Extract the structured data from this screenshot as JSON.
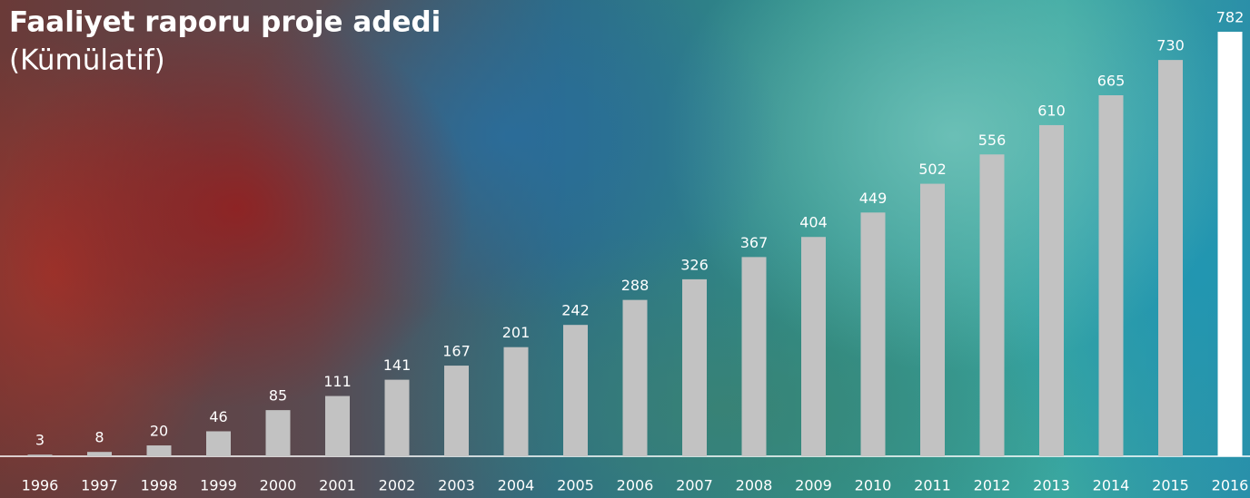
{
  "chart_data": {
    "type": "bar",
    "title": "Faaliyet raporu proje adedi",
    "subtitle": "(Kümülatif)",
    "categories": [
      "1996",
      "1997",
      "1998",
      "1999",
      "2000",
      "2001",
      "2002",
      "2003",
      "2004",
      "2005",
      "2006",
      "2007",
      "2008",
      "2009",
      "2010",
      "2011",
      "2012",
      "2013",
      "2014",
      "2015",
      "2016"
    ],
    "values": [
      3,
      8,
      20,
      46,
      85,
      111,
      141,
      167,
      201,
      242,
      288,
      326,
      367,
      404,
      449,
      502,
      556,
      610,
      665,
      730,
      782
    ],
    "colors": [
      "#c2c2c2",
      "#c2c2c2",
      "#c2c2c2",
      "#c2c2c2",
      "#c2c2c2",
      "#c2c2c2",
      "#c2c2c2",
      "#c2c2c2",
      "#c2c2c2",
      "#c2c2c2",
      "#c2c2c2",
      "#c2c2c2",
      "#c2c2c2",
      "#c2c2c2",
      "#c2c2c2",
      "#c2c2c2",
      "#c2c2c2",
      "#c2c2c2",
      "#c2c2c2",
      "#c2c2c2",
      "#ffffff"
    ]
  }
}
